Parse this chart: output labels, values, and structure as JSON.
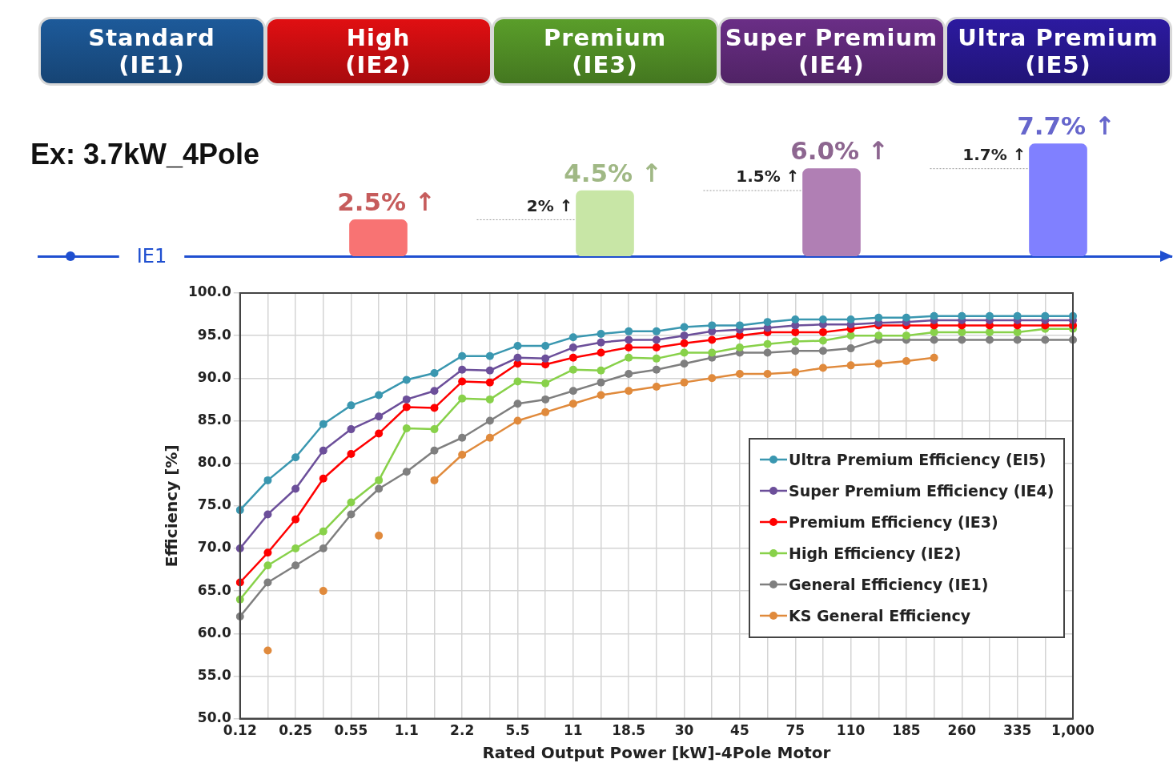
{
  "chart_data": [
    {
      "type": "bar",
      "title": "Ex: 3.7kW_4Pole",
      "categories": [
        "Standard (IE1)",
        "High (IE2)",
        "Premium (IE3)",
        "Super Premium (IE4)",
        "Ultra Premium (IE5)"
      ],
      "values": [
        0,
        2.5,
        4.5,
        6.0,
        7.7
      ],
      "colors": [
        "#1f5fa0",
        "#f87373",
        "#c8e6a6",
        "#b07fb4",
        "#8080ff"
      ],
      "value_labels": [
        null,
        "2.5% ↑",
        "4.5% ↑",
        "6.0% ↑",
        "7.7% ↑"
      ],
      "annotations": [
        {
          "text": "IE1",
          "x": "Standard (IE1)",
          "y": 0
        },
        "2% ↑",
        "1.5% ↑",
        "1.7% ↑"
      ],
      "legend": false,
      "grid": false
    },
    {
      "type": "line",
      "xlabel": "Rated Output Power [kW]-4Pole Motor",
      "ylabel": "Efficiency [%]",
      "categories": [
        "0.12",
        null,
        "0.25",
        null,
        "0.55",
        null,
        "1.1",
        null,
        "2.2",
        null,
        "5.5",
        null,
        "11",
        null,
        "18.5",
        null,
        "30",
        null,
        "45",
        null,
        "75",
        null,
        "110",
        null,
        "185",
        null,
        "260",
        null,
        "335",
        null,
        "1,000"
      ],
      "ylim": [
        50,
        100
      ],
      "yticks": [
        {
          "value": 50,
          "label": "50.0"
        },
        {
          "value": 55,
          "label": "55.0"
        },
        {
          "value": 60,
          "label": "60.0"
        },
        {
          "value": 65,
          "label": "65.0"
        },
        {
          "value": 70,
          "label": "70.0"
        },
        {
          "value": 75,
          "label": "75.0"
        },
        {
          "value": 80,
          "label": "80.0"
        },
        {
          "value": 85,
          "label": "85.0"
        },
        {
          "value": 90,
          "label": "90.0"
        },
        {
          "value": 95,
          "label": "95.0"
        },
        {
          "value": 100,
          "label": "100.0"
        }
      ],
      "series": [
        {
          "name": "Ultra Premium Efficiency (EI5)",
          "color": "#3a97b0",
          "values": [
            74.5,
            78,
            80.7,
            84.6,
            86.8,
            88,
            89.8,
            90.6,
            92.6,
            92.6,
            93.8,
            93.8,
            94.8,
            95.2,
            95.5,
            95.5,
            96,
            96.2,
            96.2,
            96.6,
            96.9,
            96.9,
            96.9,
            97.1,
            97.1,
            97.3,
            97.3,
            97.3,
            97.3,
            97.3,
            97.3
          ]
        },
        {
          "name": "Super Premium Efficiency (IE4)",
          "color": "#6c4f9a",
          "values": [
            70,
            74,
            77,
            81.5,
            84,
            85.5,
            87.5,
            88.5,
            91,
            90.9,
            92.4,
            92.3,
            93.6,
            94.2,
            94.5,
            94.5,
            95,
            95.5,
            95.7,
            95.9,
            96.2,
            96.3,
            96.3,
            96.5,
            96.6,
            96.8,
            96.8,
            96.8,
            96.8,
            96.8,
            96.8
          ]
        },
        {
          "name": "Premium Efficiency (IE3)",
          "color": "#ff0000",
          "values": [
            66,
            69.5,
            73.4,
            78.2,
            81.1,
            83.5,
            86.6,
            86.5,
            89.6,
            89.5,
            91.7,
            91.6,
            92.4,
            93,
            93.6,
            93.6,
            94.1,
            94.5,
            95,
            95.4,
            95.4,
            95.4,
            95.8,
            96.2,
            96.2,
            96.2,
            96.2,
            96.2,
            96.2,
            96.2,
            96.2
          ]
        },
        {
          "name": "High Efficiency (IE2)",
          "color": "#88d14a",
          "values": [
            64,
            68,
            70,
            72,
            75.4,
            78,
            84.1,
            84,
            87.6,
            87.5,
            89.6,
            89.4,
            91,
            90.9,
            92.4,
            92.3,
            93,
            93,
            93.6,
            94,
            94.3,
            94.4,
            95,
            95,
            95,
            95.4,
            95.4,
            95.4,
            95.4,
            95.8,
            95.8
          ]
        },
        {
          "name": "General Efficiency (IE1)",
          "color": "#7f7f7f",
          "values": [
            62,
            66,
            68,
            70,
            74,
            77,
            79,
            81.5,
            83,
            85,
            87,
            87.5,
            88.5,
            89.5,
            90.5,
            91,
            91.7,
            92.4,
            93,
            93,
            93.2,
            93.2,
            93.5,
            94.5,
            94.5,
            94.5,
            94.5,
            94.5,
            94.5,
            94.5,
            94.5
          ]
        },
        {
          "name": "KS General Efficiency",
          "color": "#e08a3c",
          "values": [
            null,
            58,
            null,
            65,
            null,
            71.5,
            null,
            78,
            81,
            83,
            85,
            86,
            87,
            88,
            88.5,
            89,
            89.5,
            90,
            90.5,
            90.5,
            90.7,
            91.2,
            91.5,
            91.7,
            92,
            92.4,
            null,
            null,
            null,
            null,
            null
          ]
        }
      ],
      "legend": "right",
      "grid": true,
      "marker": "circle",
      "line_style": "solid"
    }
  ]
}
